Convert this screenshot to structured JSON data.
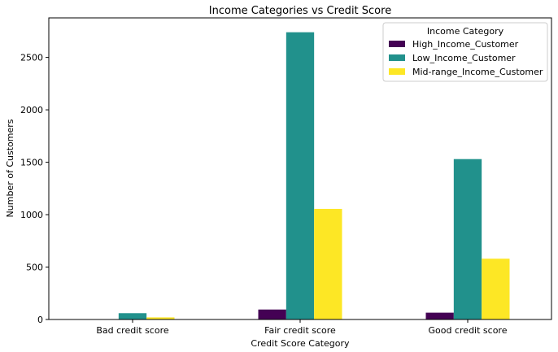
{
  "chart_data": {
    "type": "bar",
    "title": "Income Categories vs Credit Score",
    "xlabel": "Credit Score Category",
    "ylabel": "Number of Customers",
    "categories": [
      "Bad credit score",
      "Fair credit score",
      "Good credit score"
    ],
    "series": [
      {
        "name": "High_Income_Customer",
        "color": "#440154",
        "values": [
          0,
          95,
          65
        ]
      },
      {
        "name": "Low_Income_Customer",
        "color": "#21918c",
        "values": [
          60,
          2740,
          1530
        ]
      },
      {
        "name": "Mid-range_Income_Customer",
        "color": "#fde725",
        "values": [
          20,
          1055,
          580
        ]
      }
    ],
    "ylim": [
      0,
      2877
    ],
    "yticks": [
      0,
      500,
      1000,
      1500,
      2000,
      2500
    ],
    "legend": {
      "title": "Income Category",
      "placement": "top-right"
    },
    "grid": false
  }
}
